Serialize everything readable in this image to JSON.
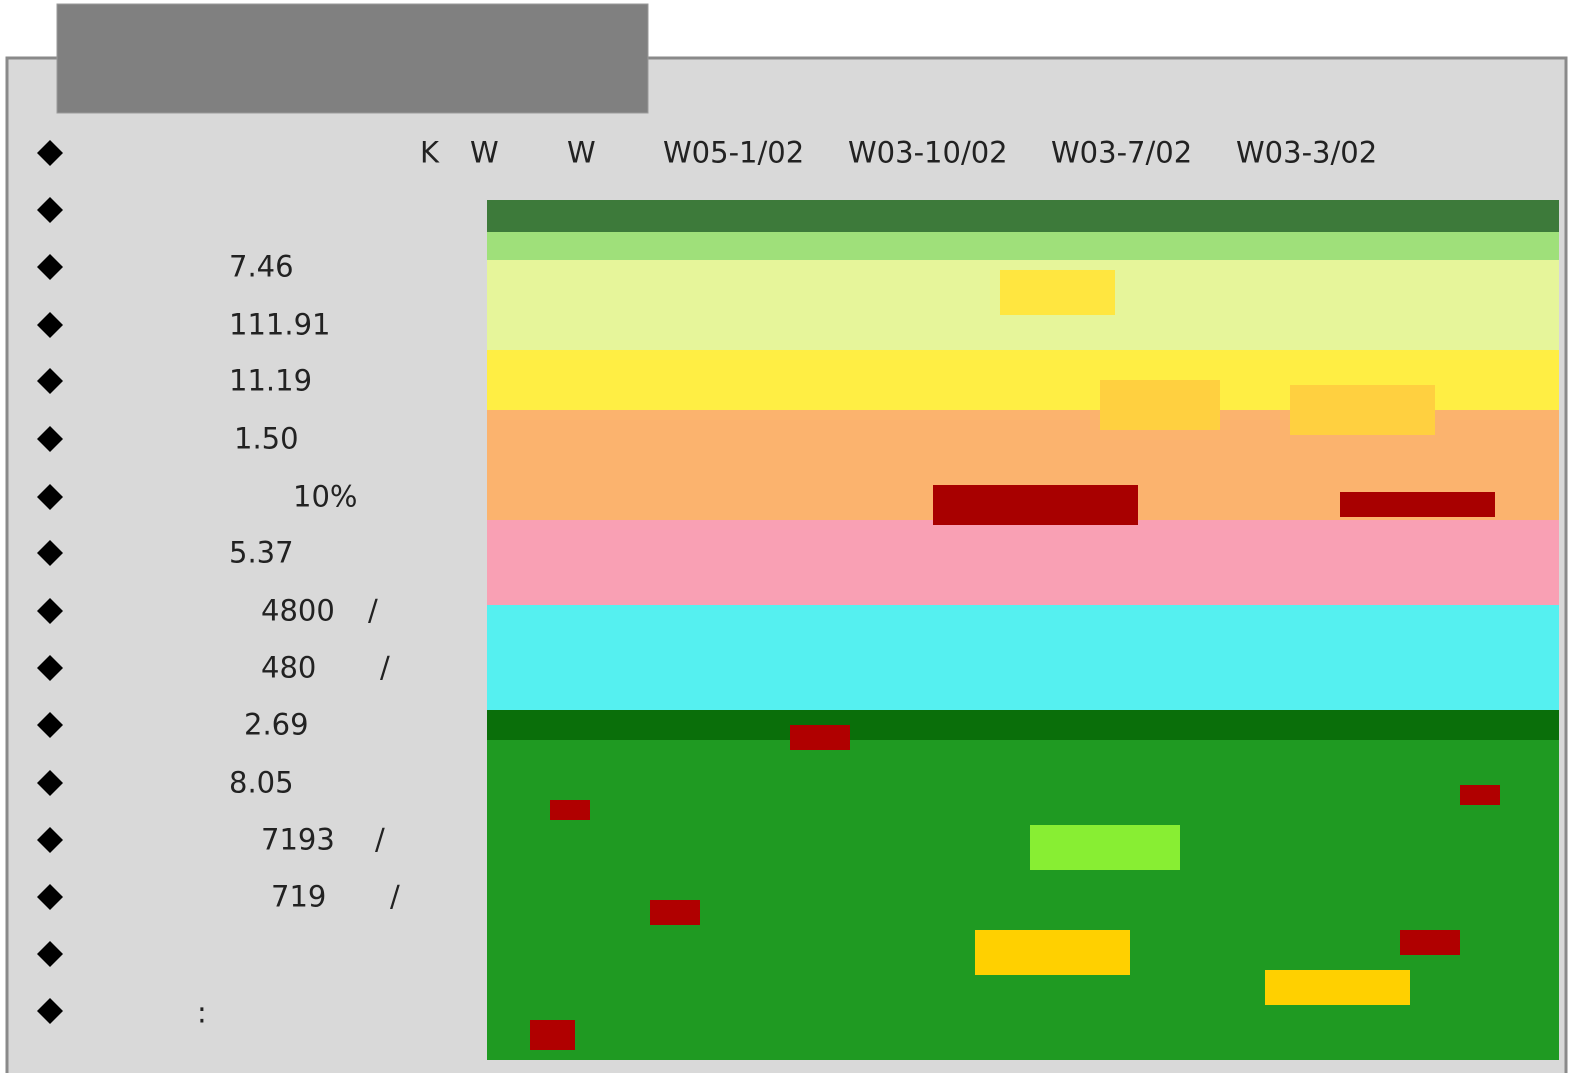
{
  "rows": [
    [
      "K",
      "W",
      "W",
      "W05-1/02",
      "W03-10/02",
      "W03-7/02",
      "W03-3/02"
    ],
    [
      "7.46"
    ],
    [
      "111.91"
    ],
    [
      "11.19"
    ],
    [
      "1.50"
    ],
    [
      "10%"
    ],
    [
      "5.37"
    ],
    [
      "4800",
      "/"
    ],
    [
      "480",
      "/"
    ],
    [
      "2.69"
    ],
    [
      "8.05"
    ],
    [
      "7193",
      "/"
    ],
    [
      "719",
      "/"
    ],
    [
      ":"
    ]
  ]
}
